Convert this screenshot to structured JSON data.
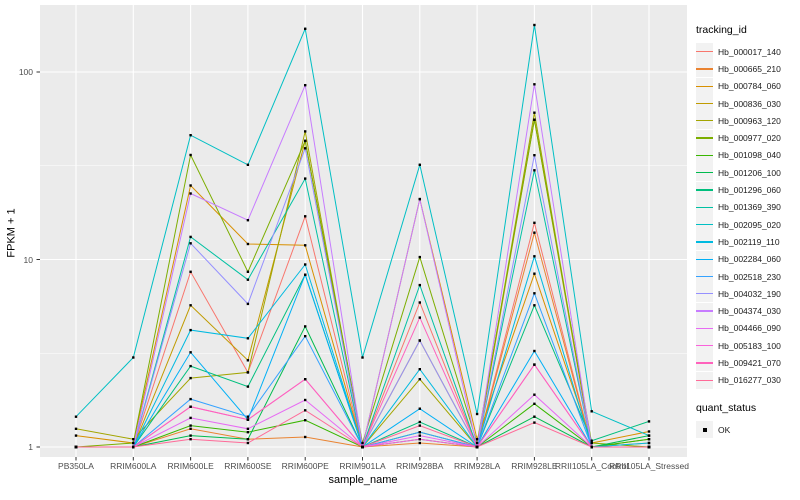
{
  "figure": {
    "background": "#FFFFFF",
    "panel_bg": "#EBEBEB",
    "grid_color": "#FFFFFF",
    "axis_text_color": "#4D4D4D",
    "tick_mark_color": "#333333",
    "point_color": "#000000",
    "legend_key_bg": "#F2F2F2"
  },
  "axes": {
    "x_title": "sample_name",
    "y_title": "FPKM + 1",
    "y_tick_labels": [
      "1",
      "10",
      "100"
    ]
  },
  "legend": {
    "tracking_title": "tracking_id",
    "quant_title": "quant_status",
    "quant_items": [
      "OK"
    ]
  },
  "chart_data": {
    "type": "line",
    "title": "",
    "xlabel": "sample_name",
    "ylabel": "FPKM + 1",
    "y_scale": "log10",
    "y_ticks": [
      1,
      10,
      100
    ],
    "y_minor_ticks": [
      3.162,
      31.62
    ],
    "ylim": [
      0.88,
      230
    ],
    "grid": true,
    "legend_position": "right",
    "legend_title": "tracking_id",
    "legend2": {
      "title": "quant_status",
      "items": [
        "OK"
      ],
      "marker": "black-square"
    },
    "point_marker": "black-square",
    "categories": [
      "PB350LA",
      "RRIM600LA",
      "RRIM600LE",
      "RRIM600SE",
      "RRIM600PE",
      "RRIM901LA",
      "RRIM928BA",
      "RRIM928LA",
      "RRIM928LE",
      "RRII105LA_Control",
      "RRII105LA_Stressed"
    ],
    "series": [
      {
        "name": "Hb_000017_140",
        "color": "#F8766D",
        "values": [
          1.0,
          1.0,
          8.6,
          2.5,
          17.0,
          1.0,
          5.9,
          1.0,
          15.7,
          1.0,
          1.0
        ]
      },
      {
        "name": "Hb_000665_210",
        "color": "#EA8331",
        "values": [
          1.0,
          1.0,
          1.25,
          1.1,
          1.13,
          1.0,
          1.05,
          1.0,
          13.9,
          1.0,
          1.05
        ]
      },
      {
        "name": "Hb_000784_060",
        "color": "#D89000",
        "values": [
          1.15,
          1.05,
          24.8,
          12.1,
          11.9,
          1.0,
          21.0,
          1.1,
          8.4,
          1.05,
          1.21
        ]
      },
      {
        "name": "Hb_000836_030",
        "color": "#C09B00",
        "values": [
          1.0,
          1.0,
          5.7,
          2.9,
          42.9,
          1.0,
          3.7,
          1.0,
          55.7,
          1.0,
          1.0
        ]
      },
      {
        "name": "Hb_000963_120",
        "color": "#A3A500",
        "values": [
          1.25,
          1.1,
          2.33,
          2.5,
          48.2,
          1.0,
          2.3,
          1.0,
          60.7,
          1.0,
          1.1
        ]
      },
      {
        "name": "Hb_000977_020",
        "color": "#7CAE00",
        "values": [
          1.0,
          1.05,
          36.1,
          8.6,
          42.9,
          1.05,
          10.3,
          1.05,
          55.7,
          1.05,
          1.0
        ]
      },
      {
        "name": "Hb_001098_040",
        "color": "#39B600",
        "values": [
          1.0,
          1.0,
          1.3,
          1.2,
          1.39,
          1.0,
          1.2,
          1.0,
          1.7,
          1.0,
          1.1
        ]
      },
      {
        "name": "Hb_001206_100",
        "color": "#00BB4E",
        "values": [
          1.0,
          1.0,
          1.15,
          1.1,
          4.4,
          1.0,
          1.1,
          1.0,
          1.45,
          1.0,
          1.15
        ]
      },
      {
        "name": "Hb_001296_060",
        "color": "#00BF7D",
        "values": [
          1.0,
          1.0,
          2.7,
          2.1,
          8.3,
          1.0,
          1.36,
          1.0,
          5.7,
          1.08,
          1.37
        ]
      },
      {
        "name": "Hb_001369_390",
        "color": "#00C1A3",
        "values": [
          1.0,
          1.0,
          13.2,
          7.8,
          27.0,
          1.0,
          7.3,
          1.0,
          29.9,
          1.0,
          1.0
        ]
      },
      {
        "name": "Hb_002095_020",
        "color": "#00BFC4",
        "values": [
          1.45,
          3.0,
          46.0,
          32.0,
          170.0,
          3.0,
          32.0,
          1.5,
          178.0,
          1.55,
          1.15
        ]
      },
      {
        "name": "Hb_002119_110",
        "color": "#00BAE0",
        "values": [
          1.0,
          1.0,
          4.2,
          3.8,
          9.4,
          1.0,
          2.6,
          1.0,
          10.4,
          1.0,
          1.05
        ]
      },
      {
        "name": "Hb_002284_060",
        "color": "#00B0F6",
        "values": [
          1.0,
          1.0,
          3.2,
          1.4,
          8.3,
          1.0,
          1.6,
          1.0,
          3.25,
          1.0,
          1.0
        ]
      },
      {
        "name": "Hb_002518_230",
        "color": "#35A2FF",
        "values": [
          1.0,
          1.0,
          1.8,
          1.45,
          3.9,
          1.0,
          1.2,
          1.0,
          6.6,
          1.0,
          1.0
        ]
      },
      {
        "name": "Hb_004032_190",
        "color": "#9590FF",
        "values": [
          1.0,
          1.0,
          12.2,
          5.8,
          39.2,
          1.0,
          3.7,
          1.0,
          36.0,
          1.0,
          1.0
        ]
      },
      {
        "name": "Hb_004374_030",
        "color": "#C77CFF",
        "values": [
          1.0,
          1.0,
          22.5,
          16.2,
          85.0,
          1.0,
          21.0,
          1.0,
          86.0,
          1.0,
          1.0
        ]
      },
      {
        "name": "Hb_004466_090",
        "color": "#E76BF3",
        "values": [
          1.0,
          1.0,
          1.43,
          1.25,
          1.78,
          1.0,
          1.15,
          1.0,
          1.9,
          1.0,
          1.0
        ]
      },
      {
        "name": "Hb_005183_100",
        "color": "#FA62DB",
        "values": [
          1.0,
          1.0,
          1.64,
          1.4,
          2.3,
          1.0,
          1.1,
          1.0,
          2.75,
          1.0,
          1.0
        ]
      },
      {
        "name": "Hb_009421_070",
        "color": "#FF62BC",
        "values": [
          1.0,
          1.0,
          1.64,
          1.4,
          2.3,
          1.0,
          4.9,
          1.0,
          2.75,
          1.0,
          1.0
        ]
      },
      {
        "name": "Hb_016277_030",
        "color": "#FF6A98",
        "values": [
          1.0,
          1.0,
          1.1,
          1.05,
          1.57,
          1.0,
          1.3,
          1.0,
          1.35,
          1.0,
          1.0
        ]
      }
    ]
  }
}
